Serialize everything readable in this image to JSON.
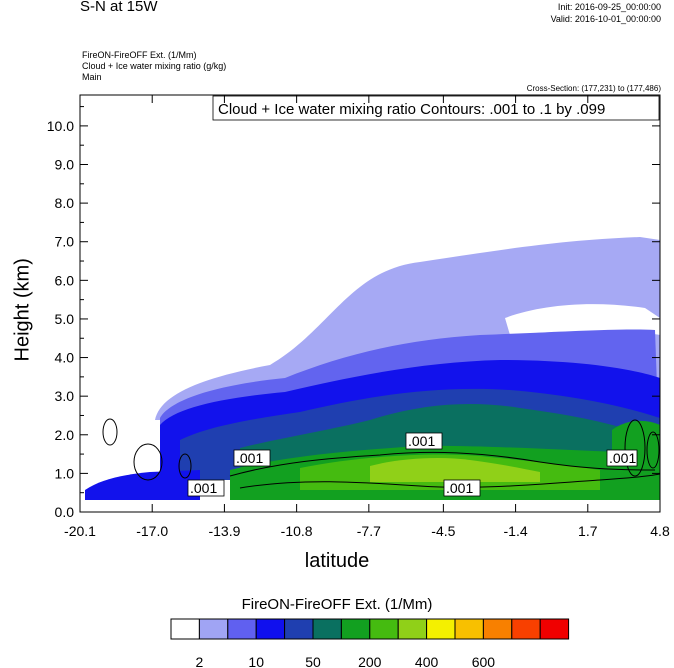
{
  "header": {
    "title": "S-N at 15W",
    "init": "Init: 2016-09-25_00:00:00",
    "valid": "Valid: 2016-10-01_00:00:00",
    "field1": "FireON-FireOFF Ext.   (1/Mm)",
    "field2": "Cloud + Ice water mixing ratio   (g/kg)",
    "field3": "Main",
    "cross_section": "Cross-Section: (177,231) to (177,486)"
  },
  "chart_data": {
    "type": "heatmap",
    "title": "Cloud + Ice water mixing ratio Contours: .001 to .1 by .099",
    "xlabel": "latitude",
    "ylabel": "Height (km)",
    "xlim": [
      -20.1,
      4.8
    ],
    "ylim": [
      0.0,
      10.8
    ],
    "x_ticks": [
      "-20.1",
      "-17.0",
      "-13.9",
      "-10.8",
      "-7.7",
      "-4.5",
      "-1.4",
      "1.7",
      "4.8"
    ],
    "y_ticks": [
      "0.0",
      "1.0",
      "2.0",
      "3.0",
      "4.0",
      "5.0",
      "6.0",
      "7.0",
      "8.0",
      "9.0",
      "10.0"
    ],
    "contour_labels": [
      ".001",
      ".001",
      ".001",
      ".001",
      ".001"
    ],
    "colorbar": {
      "title": "FireON-FireOFF Ext.  (1/Mm)",
      "colors": [
        "#ffffff",
        "#a0a4f4",
        "#6060f0",
        "#1010ee",
        "#1f3fb0",
        "#0a7060",
        "#12a020",
        "#45bb10",
        "#90d018",
        "#f4f000",
        "#f8c000",
        "#f88000",
        "#f84000",
        "#f00000"
      ],
      "labels": [
        "2",
        "10",
        "50",
        "200",
        "400",
        "600"
      ]
    }
  }
}
